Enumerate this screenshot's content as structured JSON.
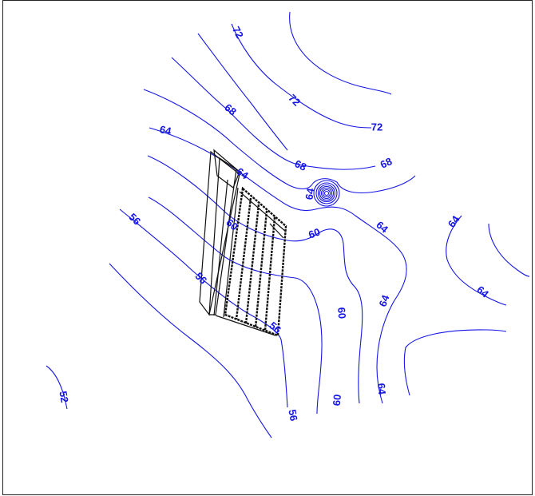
{
  "map": {
    "contour_color": "#1515e6",
    "structure_color": "#111111",
    "contour_labels": {
      "c72_a": "72",
      "c72_b": "72",
      "c72_c": "72",
      "c68_a": "68",
      "c68_b": "68",
      "c68_c": "68",
      "c64_a": "64",
      "c64_b": "64",
      "c64_c": "64",
      "c64_d": "64",
      "c64_e": "64",
      "c64_f": "64",
      "c64_g": "64",
      "c60_a": "60",
      "c60_b": "60",
      "c60_c": "60",
      "c60_d": "60",
      "c56_a": "56",
      "c56_b": "56",
      "c56_c": "56",
      "c56_d": "56",
      "c52_a": "52"
    }
  }
}
